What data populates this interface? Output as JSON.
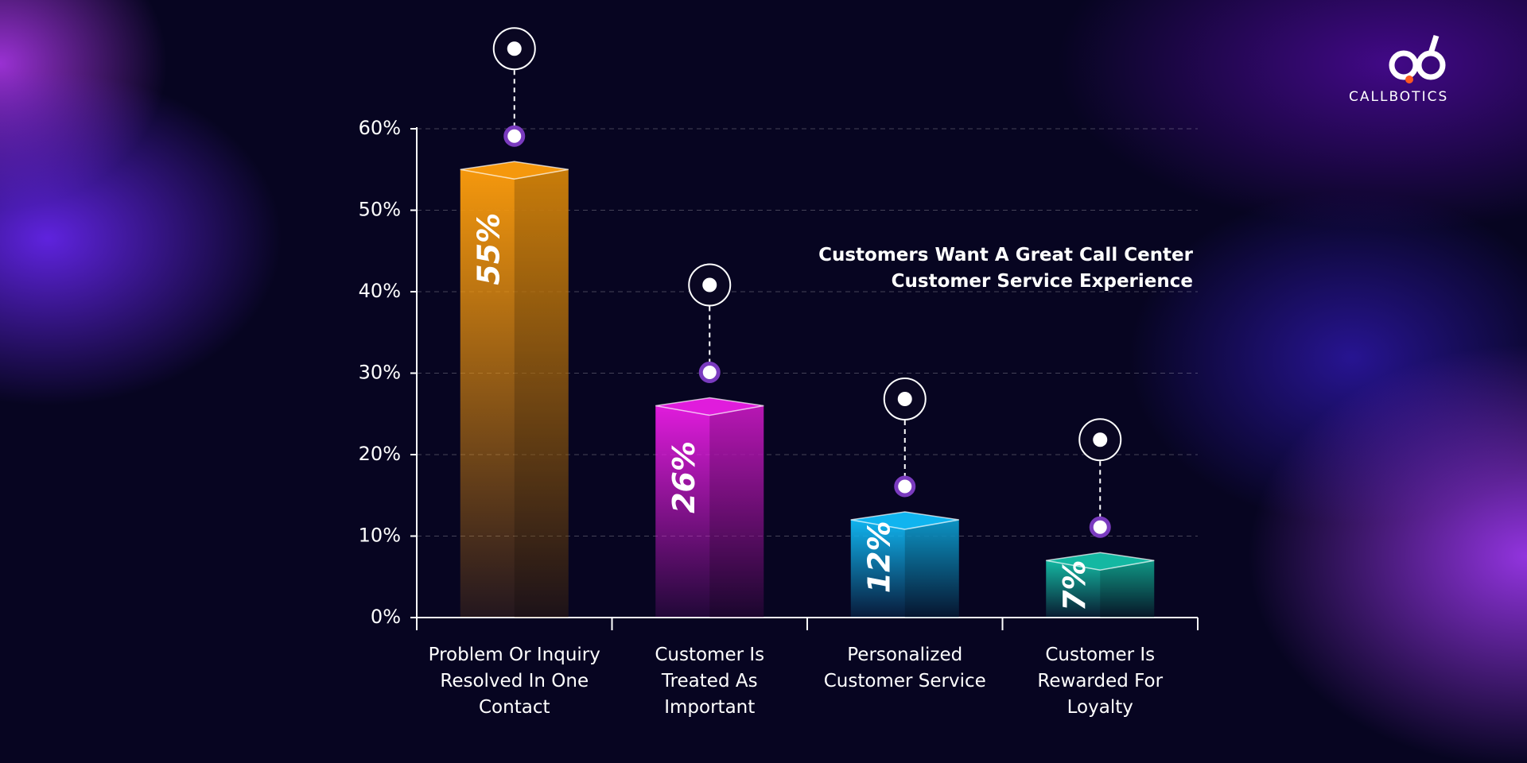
{
  "chart_data": {
    "type": "bar",
    "title": "Customers Want A Great Call Center Customer Service Experience",
    "brand": "CALLBOTICS",
    "categories": [
      "Problem Or Inquiry Resolved In One Contact",
      "Customer Is Treated As Important",
      "Personalized Customer Service",
      "Customer Is Rewarded For Loyalty"
    ],
    "series": [
      {
        "values": [
          55,
          26,
          12,
          7
        ],
        "value_labels": [
          "55%",
          "26%",
          "12%",
          "7%"
        ],
        "colors": [
          "#f5980d",
          "#e01cdc",
          "#10b4ef",
          "#14b8a2"
        ]
      }
    ],
    "ylim": [
      0,
      60
    ],
    "yticks": [
      {
        "value": 0,
        "label": "0%"
      },
      {
        "value": 10,
        "label": "10%"
      },
      {
        "value": 20,
        "label": "20%"
      },
      {
        "value": 30,
        "label": "30%"
      },
      {
        "value": 40,
        "label": "40%"
      },
      {
        "value": 50,
        "label": "50%"
      },
      {
        "value": 60,
        "label": "60%"
      }
    ],
    "grid": true
  }
}
